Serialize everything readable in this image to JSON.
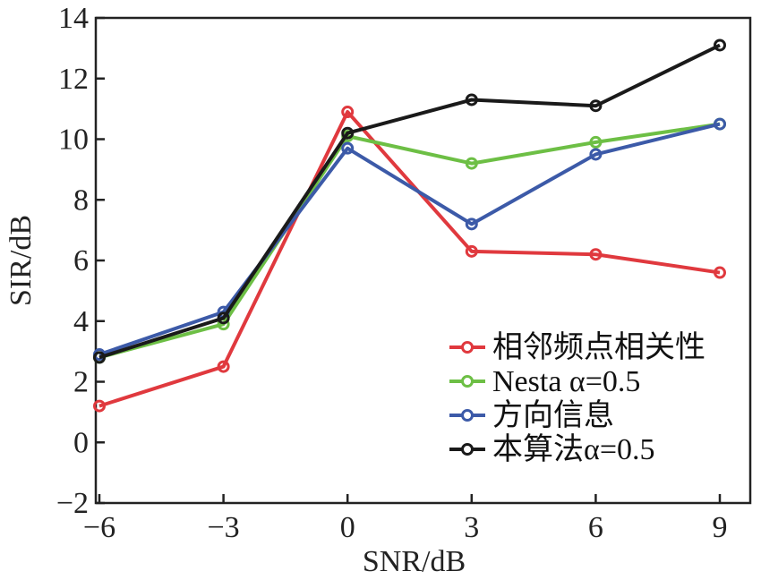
{
  "chart_data": {
    "type": "line",
    "xlabel": "SNR/dB",
    "ylabel": "SIR/dB",
    "x": [
      -6,
      -3,
      0,
      3,
      6,
      9
    ],
    "x_tick_labels": [
      "−6",
      "−3",
      "0",
      "3",
      "6",
      "9"
    ],
    "xlim": [
      -6,
      9
    ],
    "ylim": [
      -2,
      14
    ],
    "y_ticks": [
      -2,
      0,
      2,
      4,
      6,
      8,
      10,
      12,
      14
    ],
    "y_tick_labels": [
      "−2",
      "0",
      "2",
      "4",
      "6",
      "8",
      "10",
      "12",
      "14"
    ],
    "grid": false,
    "legend_position": "bottom-right",
    "series": [
      {
        "name": "相邻频点相关性",
        "color": "#e0393e",
        "values": [
          1.2,
          2.5,
          10.9,
          6.3,
          6.2,
          5.6
        ]
      },
      {
        "name": "Nesta α=0.5",
        "color": "#6dbf45",
        "values": [
          2.8,
          3.9,
          10.1,
          9.2,
          9.9,
          10.5
        ]
      },
      {
        "name": "方向信息",
        "color": "#3c5aa8",
        "values": [
          2.9,
          4.3,
          9.7,
          7.2,
          9.5,
          10.5
        ]
      },
      {
        "name": "本算法α=0.5",
        "color": "#1a1a1a",
        "values": [
          2.8,
          4.1,
          10.2,
          11.3,
          11.1,
          13.1
        ]
      }
    ]
  }
}
